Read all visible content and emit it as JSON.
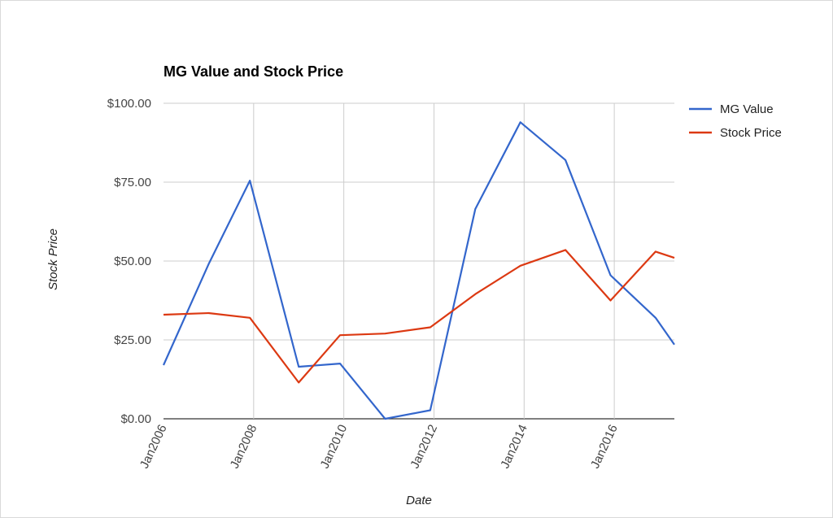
{
  "chart_data": {
    "type": "line",
    "title": "MG Value and Stock Price",
    "xlabel": "Date",
    "ylabel": "Stock Price",
    "x_range": [
      "2006-01",
      "2017-05"
    ],
    "ylim": [
      0,
      100
    ],
    "y_ticks": [
      0,
      25,
      50,
      75,
      100
    ],
    "y_tick_labels": [
      "$0.00",
      "$25.00",
      "$50.00",
      "$75.00",
      "$100.00"
    ],
    "x_ticks": [
      "2006-01",
      "2008-01",
      "2010-01",
      "2012-01",
      "2014-01",
      "2016-01"
    ],
    "x_tick_labels": [
      "Jan2006",
      "Jan2008",
      "Jan2010",
      "Jan2012",
      "Jan2014",
      "Jan2016"
    ],
    "grid": true,
    "legend_position": "right",
    "x": [
      "2006-01",
      "2007-01",
      "2007-12",
      "2009-01",
      "2009-12",
      "2010-12",
      "2011-12",
      "2012-12",
      "2013-12",
      "2014-12",
      "2015-12",
      "2016-12",
      "2017-05"
    ],
    "series": [
      {
        "name": "MG Value",
        "color": "#3366cc",
        "values": [
          17,
          49,
          75.5,
          16.5,
          17.5,
          0,
          2.7,
          66.5,
          94,
          82,
          45.5,
          32,
          23.5
        ]
      },
      {
        "name": "Stock Price",
        "color": "#dc3912",
        "values": [
          33,
          33.5,
          32,
          11.5,
          26.5,
          27,
          29,
          39.5,
          48.5,
          53.5,
          37.5,
          53,
          51
        ]
      }
    ]
  }
}
